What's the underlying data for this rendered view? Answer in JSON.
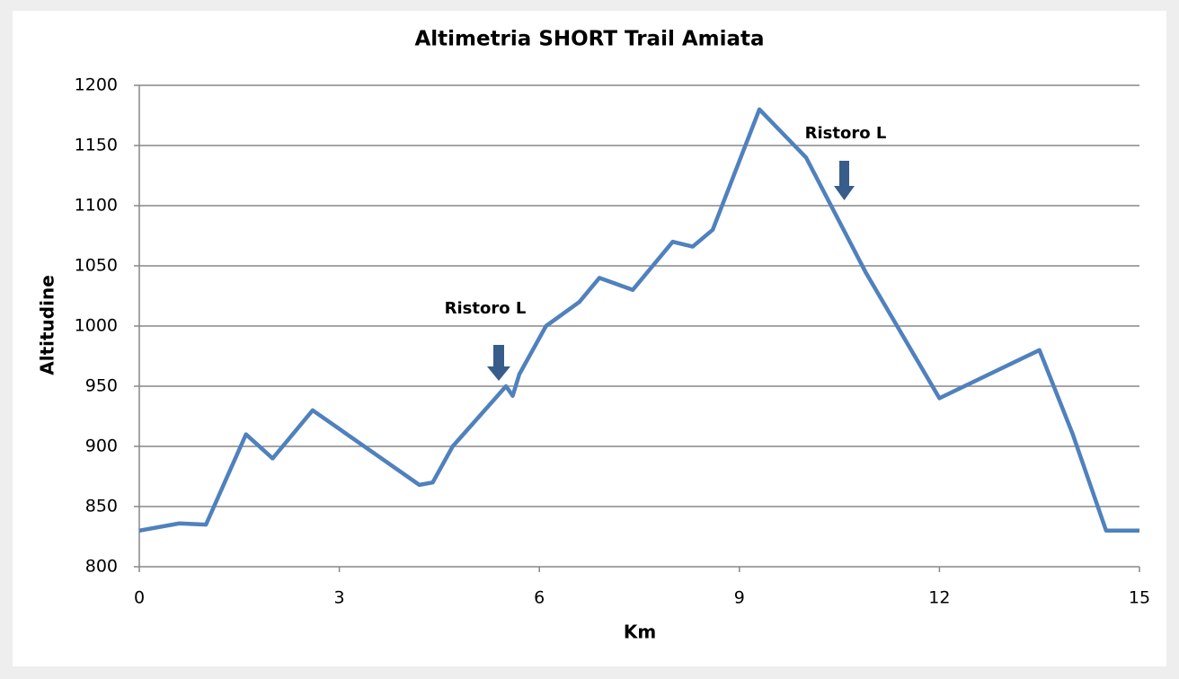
{
  "chart_data": {
    "type": "line",
    "title": "Altimetria SHORT Trail Amiata",
    "x_label": "Km",
    "y_label": "Altitudine",
    "x": [
      0,
      0.6,
      1,
      1.6,
      2,
      2.6,
      4.2,
      4.4,
      4.7,
      5.5,
      5.6,
      5.7,
      6.1,
      6.6,
      6.9,
      7.4,
      8,
      8.3,
      8.6,
      9.3,
      10,
      10.9,
      12,
      13.5,
      14,
      14.5,
      15
    ],
    "series": [
      {
        "name": "Altitudine",
        "color": "#4f81bd",
        "values": [
          830,
          836,
          835,
          910,
          890,
          930,
          868,
          870,
          900,
          950,
          942,
          960,
          1000,
          1020,
          1040,
          1030,
          1070,
          1066,
          1080,
          1180,
          1140,
          1044,
          940,
          980,
          910,
          830,
          830
        ]
      }
    ],
    "xlim": [
      0,
      15
    ],
    "xticks": [
      0,
      3,
      6,
      9,
      12,
      15
    ],
    "ylim": [
      800,
      1200
    ],
    "yticks": [
      800,
      850,
      900,
      950,
      1000,
      1050,
      1100,
      1150,
      1200
    ],
    "grid": true,
    "annotations": [
      {
        "text": "Ristoro L"
      },
      {
        "text": "Ristoro L"
      }
    ]
  }
}
